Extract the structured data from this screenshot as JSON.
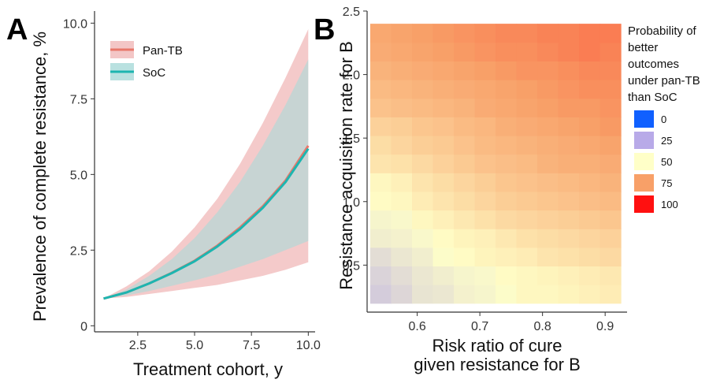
{
  "panels": {
    "a": "A",
    "b": "B"
  },
  "chart_data": [
    {
      "type": "line",
      "xlabel": "Treatment cohort, y",
      "ylabel": "Prevalence of complete resistance, %",
      "xlim": [
        0.6,
        10.3
      ],
      "ylim": [
        -0.2,
        10.4
      ],
      "xticks": [
        2.5,
        5.0,
        7.5,
        10.0
      ],
      "xtick_labels": [
        "2.5",
        "5.0",
        "7.5",
        "10.0"
      ],
      "yticks": [
        0,
        2.5,
        5.0,
        7.5,
        10.0
      ],
      "ytick_labels": [
        "0",
        "2.5",
        "5.0",
        "7.5",
        "10.0"
      ],
      "legend_position": "top-left",
      "x": [
        1,
        2,
        3,
        4,
        5,
        6,
        7,
        8,
        9,
        10
      ],
      "series": [
        {
          "name": "Pan-TB",
          "color": "#e8786b",
          "band_color": "#f0b8b8",
          "values": [
            0.9,
            1.1,
            1.4,
            1.75,
            2.15,
            2.65,
            3.25,
            3.95,
            4.8,
            5.95
          ],
          "lower": [
            0.9,
            0.95,
            1.05,
            1.15,
            1.25,
            1.35,
            1.5,
            1.65,
            1.85,
            2.1
          ],
          "upper": [
            0.9,
            1.3,
            1.8,
            2.45,
            3.25,
            4.2,
            5.35,
            6.7,
            8.2,
            9.8
          ]
        },
        {
          "name": "SoC",
          "color": "#1db5b0",
          "band_color": "#a8dad8",
          "values": [
            0.9,
            1.1,
            1.4,
            1.74,
            2.13,
            2.62,
            3.2,
            3.9,
            4.75,
            5.85
          ],
          "lower": [
            0.9,
            1.0,
            1.15,
            1.32,
            1.5,
            1.7,
            1.95,
            2.2,
            2.5,
            2.8
          ],
          "upper": [
            0.9,
            1.2,
            1.65,
            2.2,
            2.9,
            3.75,
            4.75,
            5.95,
            7.3,
            8.8
          ]
        }
      ]
    },
    {
      "type": "heatmap",
      "xlabel": "Risk ratio of cure\ngiven resistance for B",
      "ylabel": "Resistance acquisition rate for B",
      "xlim": [
        0.52,
        0.935
      ],
      "ylim": [
        0.13,
        2.5
      ],
      "xticks": [
        0.6,
        0.7,
        0.8,
        0.9
      ],
      "xtick_labels": [
        "0.6",
        "0.7",
        "0.8",
        "0.9"
      ],
      "yticks": [
        0.5,
        1.0,
        1.5,
        2.0,
        2.5
      ],
      "ytick_labels": [
        "0.5",
        "1.0",
        "1.5",
        "2.0",
        "2.5"
      ],
      "x_range": [
        0.525,
        0.925
      ],
      "y_range": [
        0.2,
        2.4
      ],
      "legend_title": [
        "Probability of",
        "better",
        "outcomes",
        "under pan-TB",
        "than SoC"
      ],
      "legend_values": [
        0,
        25,
        50,
        75,
        100
      ],
      "legend_labels": [
        "0",
        "25",
        "50",
        "75",
        "100"
      ],
      "legend_colors": [
        "#1060ff",
        "#b8aae8",
        "#ffffc8",
        "#f8a068",
        "#ff1010"
      ],
      "values": [
        [
          35,
          38,
          42,
          43,
          46,
          47,
          49,
          52,
          52,
          53,
          54,
          55
        ],
        [
          37,
          40,
          43,
          45,
          47,
          48,
          51,
          52,
          53,
          54,
          55,
          56
        ],
        [
          40,
          43,
          45,
          49,
          51,
          53,
          54,
          55,
          57,
          58,
          59,
          60
        ],
        [
          45,
          46,
          48,
          51,
          53,
          54,
          56,
          58,
          59,
          60,
          61,
          62
        ],
        [
          47,
          48,
          52,
          54,
          56,
          58,
          60,
          61,
          62,
          63,
          64,
          65
        ],
        [
          51,
          52,
          55,
          57,
          59,
          61,
          63,
          64,
          65,
          66,
          67,
          68
        ],
        [
          52,
          54,
          57,
          59,
          61,
          63,
          65,
          66,
          67,
          68,
          69,
          70
        ],
        [
          57,
          58,
          60,
          62,
          64,
          66,
          67,
          68,
          70,
          71,
          71,
          72
        ],
        [
          59,
          61,
          63,
          64,
          66,
          68,
          69,
          70,
          71,
          72,
          73,
          74
        ],
        [
          62,
          63,
          65,
          66,
          68,
          69,
          71,
          72,
          73,
          74,
          75,
          76
        ],
        [
          66,
          67,
          68,
          69,
          70,
          72,
          73,
          74,
          75,
          76,
          76,
          77
        ],
        [
          68,
          69,
          70,
          71,
          72,
          73,
          74,
          75,
          76,
          77,
          78,
          78
        ],
        [
          70,
          71,
          72,
          73,
          74,
          75,
          76,
          77,
          77,
          78,
          79,
          79
        ],
        [
          72,
          73,
          74,
          75,
          76,
          77,
          78,
          78,
          79,
          80,
          81,
          80
        ],
        [
          73,
          74,
          75,
          76,
          77,
          78,
          79,
          79,
          80,
          80,
          81,
          81
        ]
      ]
    }
  ]
}
